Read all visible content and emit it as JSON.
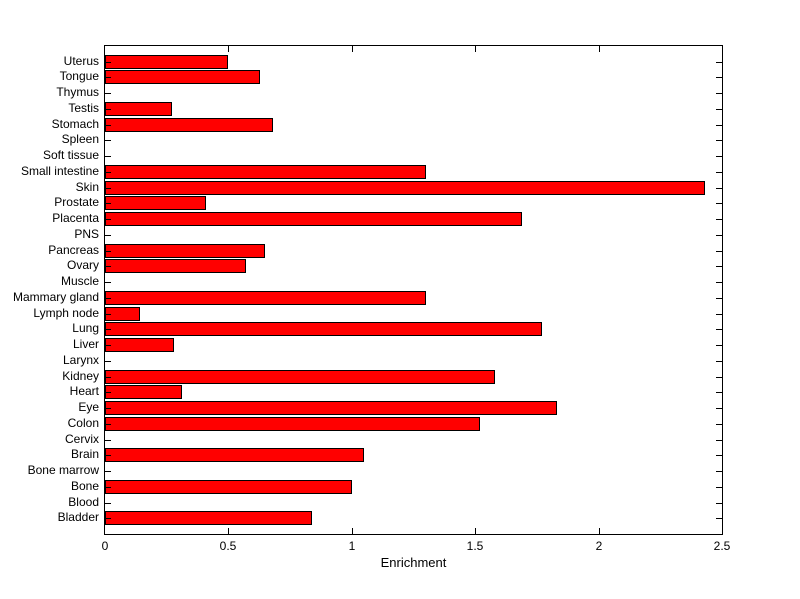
{
  "chart_data": {
    "type": "bar",
    "orientation": "horizontal",
    "title": "",
    "xlabel": "Enrichment",
    "ylabel": "",
    "xlim": [
      0,
      2.5
    ],
    "x_tick_values": [
      0,
      0.5,
      1,
      1.5,
      2,
      2.5
    ],
    "x_tick_labels": [
      "0",
      "0.5",
      "1",
      "1.5",
      "2",
      "2.5"
    ],
    "grid": false,
    "legend": null,
    "bar_color": "#FF0000",
    "bar_edge_color": "#000000",
    "axis_color": "#000000",
    "background_color": "#FFFFFF",
    "categories_top_to_bottom": [
      "Uterus",
      "Tongue",
      "Thymus",
      "Testis",
      "Stomach",
      "Spleen",
      "Soft tissue",
      "Small intestine",
      "Skin",
      "Prostate",
      "Placenta",
      "PNS",
      "Pancreas",
      "Ovary",
      "Muscle",
      "Mammary gland",
      "Lymph node",
      "Lung",
      "Liver",
      "Larynx",
      "Kidney",
      "Heart",
      "Eye",
      "Colon",
      "Cervix",
      "Brain",
      "Bone marrow",
      "Bone",
      "Blood",
      "Bladder"
    ],
    "values": [
      0.5,
      0.63,
      0,
      0.27,
      0.68,
      0,
      0,
      1.3,
      2.43,
      0.41,
      1.69,
      0,
      0.65,
      0.57,
      0,
      1.3,
      0.14,
      1.77,
      0.28,
      0,
      1.58,
      0.31,
      1.83,
      1.52,
      0,
      1.05,
      0,
      1.0,
      0,
      0.84
    ]
  }
}
